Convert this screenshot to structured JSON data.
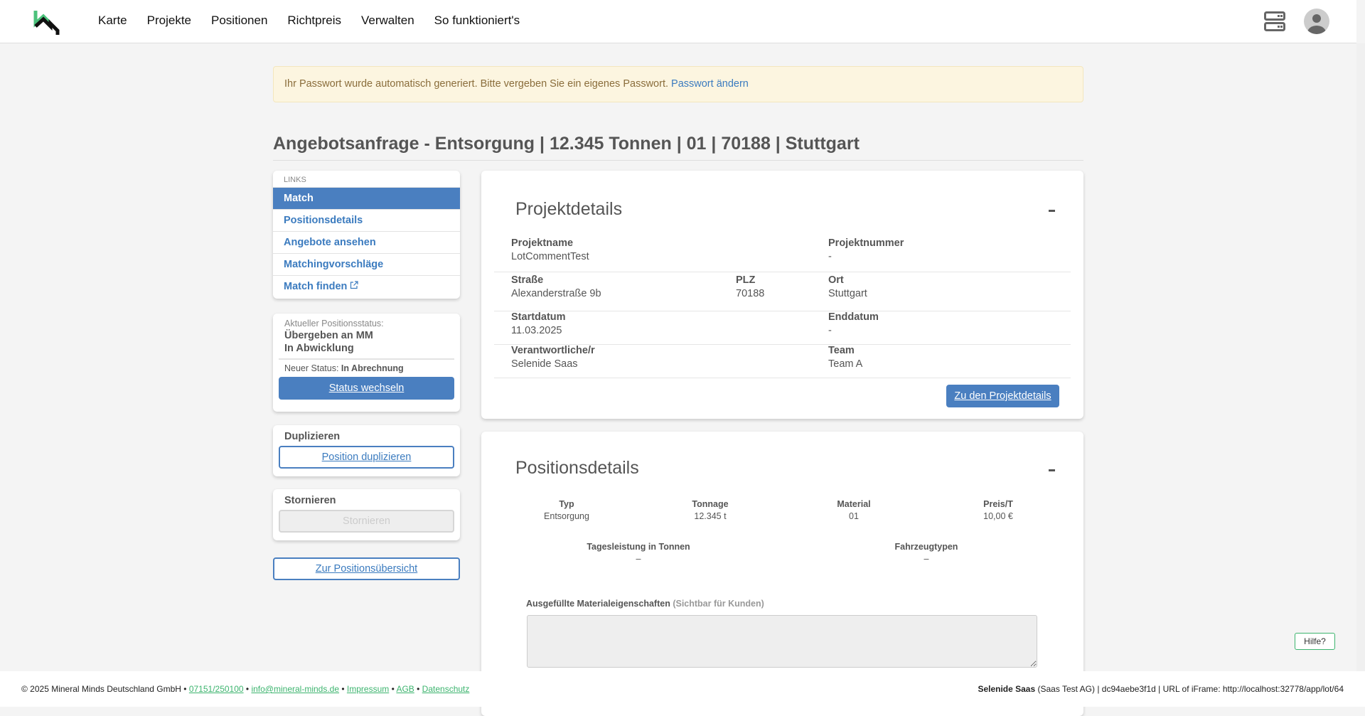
{
  "nav": {
    "items": [
      "Karte",
      "Projekte",
      "Positionen",
      "Richtpreis",
      "Verwalten",
      "So funktioniert's"
    ]
  },
  "alert": {
    "text": "Ihr Passwort wurde automatisch generiert. Bitte vergeben Sie ein eigenes Passwort.",
    "link": "Passwort ändern"
  },
  "page_title": "Angebotsanfrage - Entsorgung | 12.345 Tonnen | 01 | 70188 | Stuttgart",
  "links": {
    "heading": "LINKS",
    "items": [
      "Match",
      "Positionsdetails",
      "Angebote ansehen",
      "Matchingvorschläge",
      "Match finden"
    ]
  },
  "status": {
    "label": "Aktueller Positionsstatus:",
    "line1": "Übergeben an MM",
    "line2": "In Abwicklung",
    "new_label": "Neuer Status:",
    "new_value": "In Abrechnung",
    "button": "Status wechseln"
  },
  "duplicate": {
    "heading": "Duplizieren",
    "button": "Position duplizieren"
  },
  "cancel": {
    "heading": "Stornieren",
    "button": "Stornieren"
  },
  "overview_button": "Zur Positionsübersicht",
  "project": {
    "title": "Projektdetails",
    "collapse": "-",
    "fields": {
      "name_l": "Projektname",
      "name_v": "LotCommentTest",
      "num_l": "Projektnummer",
      "num_v": "-",
      "street_l": "Straße",
      "street_v": "Alexanderstraße 9b",
      "plz_l": "PLZ",
      "plz_v": "70188",
      "ort_l": "Ort",
      "ort_v": "Stuttgart",
      "start_l": "Startdatum",
      "start_v": "11.03.2025",
      "end_l": "Enddatum",
      "end_v": "-",
      "resp_l": "Verantwortliche/r",
      "resp_v": "Selenide Saas",
      "team_l": "Team",
      "team_v": "Team A"
    },
    "button": "Zu den Projektdetails"
  },
  "position": {
    "title": "Positionsdetails",
    "collapse": "-",
    "cols": [
      {
        "l": "Typ",
        "v": "Entsorgung"
      },
      {
        "l": "Tonnage",
        "v": "12.345 t"
      },
      {
        "l": "Material",
        "v": "01"
      },
      {
        "l": "Preis/T",
        "v": "10,00 €"
      }
    ],
    "cols2": [
      {
        "l": "Tagesleistung in Tonnen",
        "v": "–"
      },
      {
        "l": "Fahrzeugtypen",
        "v": "–"
      }
    ],
    "props_label": "Ausgefüllte Materialeigenschaften",
    "props_hint": "(Sichtbar für Kunden)",
    "props_value": ""
  },
  "footer": {
    "copy": "© 2025 Mineral Minds Deutschland GmbH •",
    "phone": "07151/250100",
    "email": "info@mineral-minds.de",
    "impressum": "Impressum",
    "agb": "AGB",
    "datenschutz": "Datenschutz",
    "user": "Selenide Saas",
    "right": "(Saas Test AG) | dc94aebe3f1d | URL of iFrame: http://localhost:32778/app/lot/64"
  },
  "help": "Hilfe?",
  "colors": {
    "primary": "#4a7fc0",
    "brand_green": "#3cb46e",
    "alert_bg": "#fcf5e0"
  }
}
